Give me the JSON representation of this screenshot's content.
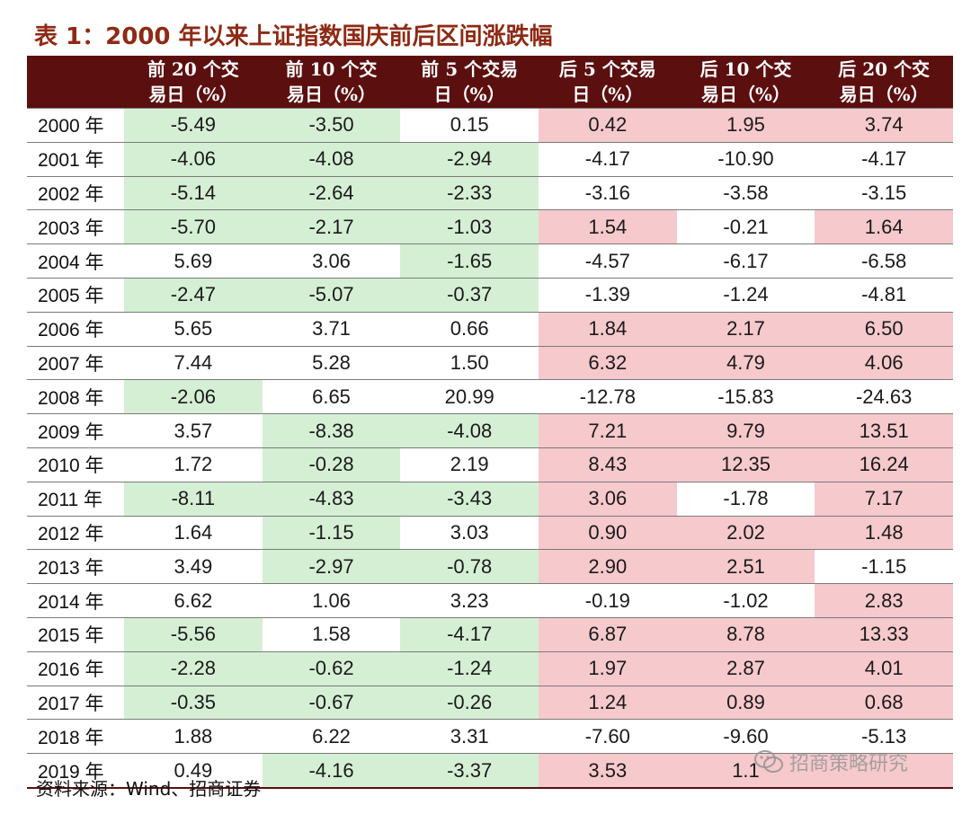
{
  "title": "表 1：2000 年以来上证指数国庆前后区间涨跌幅",
  "headers": [
    {
      "line1": "",
      "line2": ""
    },
    {
      "line1": "前 20 个交",
      "line2": "易日（%）"
    },
    {
      "line1": "前 10 个交",
      "line2": "易日（%）"
    },
    {
      "line1": "前 5 个交易",
      "line2": "日（%）"
    },
    {
      "line1": "后 5 个交易",
      "line2": "日（%）"
    },
    {
      "line1": "后 10 个交",
      "line2": "易日（%）"
    },
    {
      "line1": "后 20 个交",
      "line2": "易日（%）"
    }
  ],
  "rows": [
    {
      "year": "2000 年",
      "values": [
        "-5.49",
        "-3.50",
        "0.15",
        "0.42",
        "1.95",
        "3.74"
      ],
      "hl": [
        "g",
        "g",
        "",
        "r",
        "r",
        "r"
      ]
    },
    {
      "year": "2001 年",
      "values": [
        "-4.06",
        "-4.08",
        "-2.94",
        "-4.17",
        "-10.90",
        "-4.17"
      ],
      "hl": [
        "g",
        "g",
        "g",
        "",
        "",
        ""
      ]
    },
    {
      "year": "2002 年",
      "values": [
        "-5.14",
        "-2.64",
        "-2.33",
        "-3.16",
        "-3.58",
        "-3.15"
      ],
      "hl": [
        "g",
        "g",
        "g",
        "",
        "",
        ""
      ]
    },
    {
      "year": "2003 年",
      "values": [
        "-5.70",
        "-2.17",
        "-1.03",
        "1.54",
        "-0.21",
        "1.64"
      ],
      "hl": [
        "g",
        "g",
        "g",
        "r",
        "",
        "r"
      ]
    },
    {
      "year": "2004 年",
      "values": [
        "5.69",
        "3.06",
        "-1.65",
        "-4.57",
        "-6.17",
        "-6.58"
      ],
      "hl": [
        "",
        "",
        "g",
        "",
        "",
        ""
      ]
    },
    {
      "year": "2005 年",
      "values": [
        "-2.47",
        "-5.07",
        "-0.37",
        "-1.39",
        "-1.24",
        "-4.81"
      ],
      "hl": [
        "g",
        "g",
        "g",
        "",
        "",
        ""
      ]
    },
    {
      "year": "2006 年",
      "values": [
        "5.65",
        "3.71",
        "0.66",
        "1.84",
        "2.17",
        "6.50"
      ],
      "hl": [
        "",
        "",
        "",
        "r",
        "r",
        "r"
      ]
    },
    {
      "year": "2007 年",
      "values": [
        "7.44",
        "5.28",
        "1.50",
        "6.32",
        "4.79",
        "4.06"
      ],
      "hl": [
        "",
        "",
        "",
        "r",
        "r",
        "r"
      ]
    },
    {
      "year": "2008 年",
      "values": [
        "-2.06",
        "6.65",
        "20.99",
        "-12.78",
        "-15.83",
        "-24.63"
      ],
      "hl": [
        "g",
        "",
        "",
        "",
        "",
        ""
      ]
    },
    {
      "year": "2009 年",
      "values": [
        "3.57",
        "-8.38",
        "-4.08",
        "7.21",
        "9.79",
        "13.51"
      ],
      "hl": [
        "",
        "g",
        "g",
        "r",
        "r",
        "r"
      ]
    },
    {
      "year": "2010 年",
      "values": [
        "1.72",
        "-0.28",
        "2.19",
        "8.43",
        "12.35",
        "16.24"
      ],
      "hl": [
        "",
        "g",
        "",
        "r",
        "r",
        "r"
      ]
    },
    {
      "year": "2011 年",
      "values": [
        "-8.11",
        "-4.83",
        "-3.43",
        "3.06",
        "-1.78",
        "7.17"
      ],
      "hl": [
        "g",
        "g",
        "g",
        "r",
        "",
        "r"
      ]
    },
    {
      "year": "2012 年",
      "values": [
        "1.64",
        "-1.15",
        "3.03",
        "0.90",
        "2.02",
        "1.48"
      ],
      "hl": [
        "",
        "g",
        "",
        "r",
        "r",
        "r"
      ]
    },
    {
      "year": "2013 年",
      "values": [
        "3.49",
        "-2.97",
        "-0.78",
        "2.90",
        "2.51",
        "-1.15"
      ],
      "hl": [
        "",
        "g",
        "g",
        "r",
        "r",
        ""
      ]
    },
    {
      "year": "2014 年",
      "values": [
        "6.62",
        "1.06",
        "3.23",
        "-0.19",
        "-1.02",
        "2.83"
      ],
      "hl": [
        "",
        "",
        "",
        "",
        "",
        "r"
      ]
    },
    {
      "year": "2015 年",
      "values": [
        "-5.56",
        "1.58",
        "-4.17",
        "6.87",
        "8.78",
        "13.33"
      ],
      "hl": [
        "g",
        "",
        "g",
        "r",
        "r",
        "r"
      ]
    },
    {
      "year": "2016 年",
      "values": [
        "-2.28",
        "-0.62",
        "-1.24",
        "1.97",
        "2.87",
        "4.01"
      ],
      "hl": [
        "g",
        "g",
        "g",
        "r",
        "r",
        "r"
      ]
    },
    {
      "year": "2017 年",
      "values": [
        "-0.35",
        "-0.67",
        "-0.26",
        "1.24",
        "0.89",
        "0.68"
      ],
      "hl": [
        "g",
        "g",
        "g",
        "r",
        "r",
        "r"
      ]
    },
    {
      "year": "2018 年",
      "values": [
        "1.88",
        "6.22",
        "3.31",
        "-7.60",
        "-9.60",
        "-5.13"
      ],
      "hl": [
        "",
        "",
        "",
        "",
        "",
        ""
      ]
    },
    {
      "year": "2019 年",
      "values": [
        "0.49",
        "-4.16",
        "-3.37",
        "3.53",
        "1.1",
        ""
      ],
      "hl": [
        "",
        "g",
        "g",
        "r",
        "r",
        "r"
      ]
    }
  ],
  "source": "资料来源：Wind、招商证券",
  "watermark": {
    "text": "招商策略研究",
    "icon": "wechat-icon"
  },
  "colors": {
    "header_bg": "#5c0f0f",
    "title": "#8e2a14",
    "green_fill": "#d5efd5",
    "green_text": "#2c7a2c",
    "red_fill": "#f6c9cc",
    "red_text": "#b0202a"
  }
}
